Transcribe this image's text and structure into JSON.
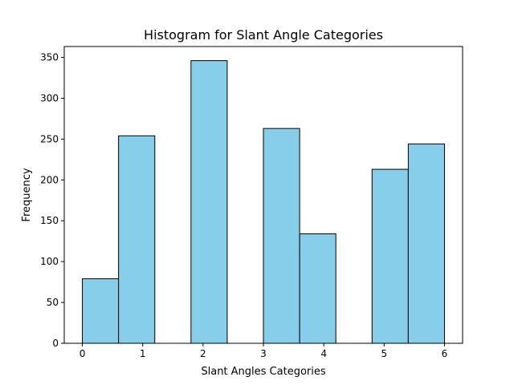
{
  "chart_data": {
    "type": "bar",
    "title": "Histogram for Slant Angle Categories",
    "xlabel": "Slant Angles Categories",
    "ylabel": "Frequency",
    "bins": [
      {
        "start": 0.0,
        "end": 0.6,
        "value": 79
      },
      {
        "start": 0.6,
        "end": 1.2,
        "value": 254
      },
      {
        "start": 1.2,
        "end": 1.8,
        "value": 0
      },
      {
        "start": 1.8,
        "end": 2.4,
        "value": 346
      },
      {
        "start": 2.4,
        "end": 3.0,
        "value": 0
      },
      {
        "start": 3.0,
        "end": 3.6,
        "value": 263
      },
      {
        "start": 3.6,
        "end": 4.2,
        "value": 134
      },
      {
        "start": 4.2,
        "end": 4.8,
        "value": 0
      },
      {
        "start": 4.8,
        "end": 5.4,
        "value": 213
      },
      {
        "start": 5.4,
        "end": 6.0,
        "value": 244
      }
    ],
    "xlim": [
      -0.3,
      6.3
    ],
    "ylim": [
      0,
      363.3
    ],
    "xticks": [
      0,
      1,
      2,
      3,
      4,
      5,
      6
    ],
    "yticks": [
      0,
      50,
      100,
      150,
      200,
      250,
      300,
      350
    ],
    "grid": false,
    "bar_color": "#87CEEB",
    "edge_color": "#000000"
  }
}
